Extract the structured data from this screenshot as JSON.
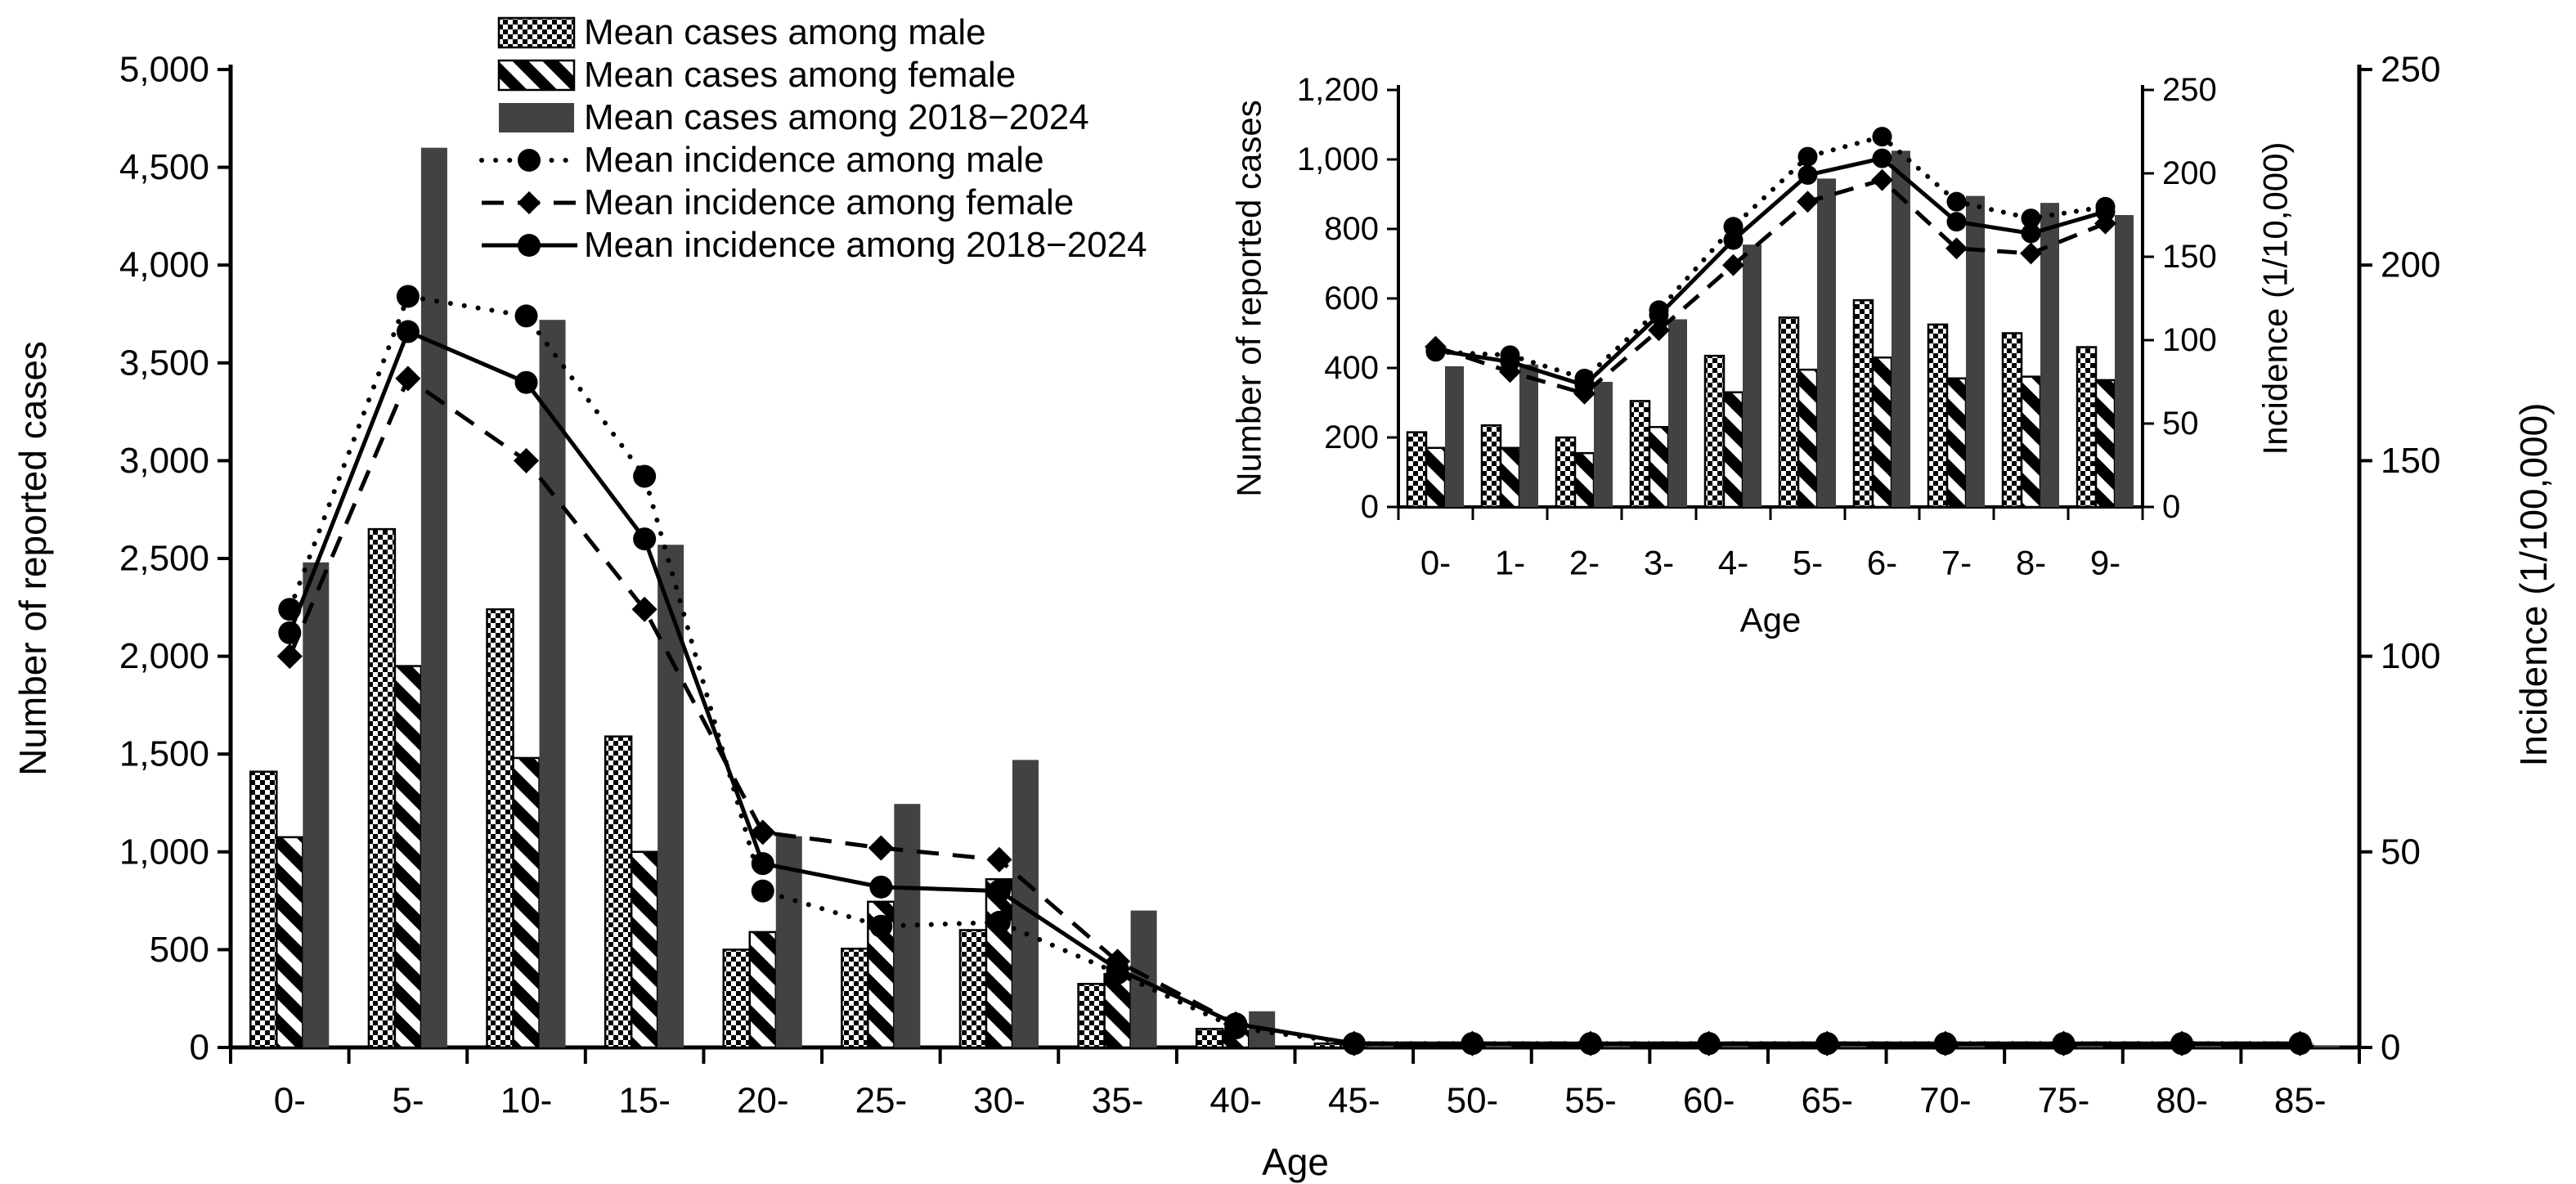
{
  "figure": {
    "background": "#ffffff",
    "colors": {
      "bar_overall_gray": "#424242",
      "ink_black": "#000000",
      "white": "#ffffff"
    },
    "legend": {
      "items": [
        {
          "label": "Mean cases among male",
          "swatch": "bar-checker"
        },
        {
          "label": "Mean cases among female",
          "swatch": "bar-stripe"
        },
        {
          "label": "Mean cases among 2018−2024",
          "swatch": "bar-solid"
        },
        {
          "label": "Mean incidence among male",
          "swatch": "line-dotted-circle"
        },
        {
          "label": "Mean incidence among female",
          "swatch": "line-dashed-diamond"
        },
        {
          "label": "Mean incidence among 2018−2024",
          "swatch": "line-solid-circle"
        }
      ]
    }
  },
  "chart_data": [
    {
      "id": "main",
      "type": "bar+line (dual axis)",
      "title": "",
      "xlabel": "Age",
      "ylabel_left": "Number of reported cases",
      "ylabel_right": "Incidence (1/100,000)",
      "ylim_left": [
        0,
        5000
      ],
      "ylim_right": [
        0,
        250
      ],
      "grid": "off",
      "legend_position": "top-left",
      "ytick_labels_left": [
        "0",
        "500",
        "1,000",
        "1,500",
        "2,000",
        "2,500",
        "3,000",
        "3,500",
        "4,000",
        "4,500",
        "5,000"
      ],
      "ytick_labels_right": [
        "0",
        "50",
        "100",
        "150",
        "200",
        "250"
      ],
      "categories": [
        "0-",
        "5-",
        "10-",
        "15-",
        "20-",
        "25-",
        "30-",
        "35-",
        "40-",
        "45-",
        "50-",
        "55-",
        "60-",
        "65-",
        "70-",
        "75-",
        "80-",
        "85-"
      ],
      "bar_series": [
        {
          "name": "Mean cases among male",
          "pattern": "checker",
          "axis": "left",
          "values": [
            1410,
            2650,
            2240,
            1590,
            500,
            505,
            600,
            325,
            95,
            20,
            8,
            6,
            5,
            4,
            3,
            3,
            2,
            2
          ]
        },
        {
          "name": "Mean cases among female",
          "pattern": "stripe",
          "axis": "left",
          "values": [
            1075,
            1950,
            1480,
            1000,
            590,
            745,
            860,
            375,
            85,
            15,
            6,
            5,
            4,
            3,
            3,
            2,
            2,
            2
          ]
        },
        {
          "name": "Mean cases among 2018−2024",
          "pattern": "solid",
          "axis": "left",
          "values": [
            2480,
            4600,
            3720,
            2570,
            1080,
            1245,
            1470,
            700,
            185,
            30,
            14,
            11,
            9,
            8,
            6,
            5,
            4,
            4
          ]
        }
      ],
      "line_series": [
        {
          "name": "Mean incidence among male",
          "style": "dotted",
          "marker": "circle",
          "axis": "right",
          "values": [
            112,
            192,
            187,
            146,
            40,
            31,
            32,
            19,
            5,
            1,
            1,
            1,
            1,
            1,
            1,
            1,
            1,
            1
          ]
        },
        {
          "name": "Mean incidence among female",
          "style": "dashed",
          "marker": "diamond",
          "axis": "right",
          "values": [
            100,
            171,
            150,
            112,
            55,
            51,
            48,
            22,
            6,
            1,
            1,
            1,
            1,
            1,
            1,
            1,
            1,
            1
          ]
        },
        {
          "name": "Mean incidence among 2018−2024",
          "style": "solid",
          "marker": "circle",
          "axis": "right",
          "values": [
            106,
            183,
            170,
            130,
            47,
            41,
            40,
            20,
            6,
            1,
            1,
            1,
            1,
            1,
            1,
            1,
            1,
            1
          ]
        }
      ]
    },
    {
      "id": "inset",
      "type": "bar+line (dual axis)",
      "title": "",
      "xlabel": "Age",
      "ylabel_left": "Number of reported cases",
      "ylabel_right": "Incidence (1/10,000)",
      "ylim_left": [
        0,
        1200
      ],
      "ylim_right": [
        0,
        250
      ],
      "grid": "off",
      "legend_position": "none",
      "ytick_labels_left": [
        "0",
        "200",
        "400",
        "600",
        "800",
        "1,000",
        "1,200"
      ],
      "ytick_labels_right": [
        "0",
        "50",
        "100",
        "150",
        "200",
        "250"
      ],
      "categories": [
        "0-",
        "1-",
        "2-",
        "3-",
        "4-",
        "5-",
        "6-",
        "7-",
        "8-",
        "9-"
      ],
      "bar_series": [
        {
          "name": "Mean cases among male",
          "pattern": "checker",
          "axis": "left",
          "values": [
            215,
            235,
            200,
            305,
            435,
            545,
            595,
            525,
            500,
            460
          ]
        },
        {
          "name": "Mean cases among female",
          "pattern": "stripe",
          "axis": "left",
          "values": [
            170,
            170,
            155,
            230,
            330,
            395,
            430,
            370,
            375,
            365
          ]
        },
        {
          "name": "Mean cases among 2018−2024",
          "pattern": "solid",
          "axis": "left",
          "values": [
            405,
            410,
            360,
            540,
            755,
            945,
            1025,
            895,
            875,
            840
          ]
        }
      ],
      "line_series": [
        {
          "name": "Mean incidence among male",
          "style": "dotted",
          "marker": "circle",
          "axis": "right",
          "values": [
            93,
            91,
            77,
            118,
            168,
            210,
            222,
            183,
            173,
            180
          ]
        },
        {
          "name": "Mean incidence among female",
          "style": "dashed",
          "marker": "diamond",
          "axis": "right",
          "values": [
            96,
            81,
            68,
            106,
            145,
            183,
            196,
            155,
            152,
            170
          ]
        },
        {
          "name": "Mean incidence among 2018−2024",
          "style": "solid",
          "marker": "circle",
          "axis": "right",
          "values": [
            94,
            87,
            73,
            115,
            160,
            199,
            209,
            171,
            164,
            177
          ]
        }
      ]
    }
  ]
}
